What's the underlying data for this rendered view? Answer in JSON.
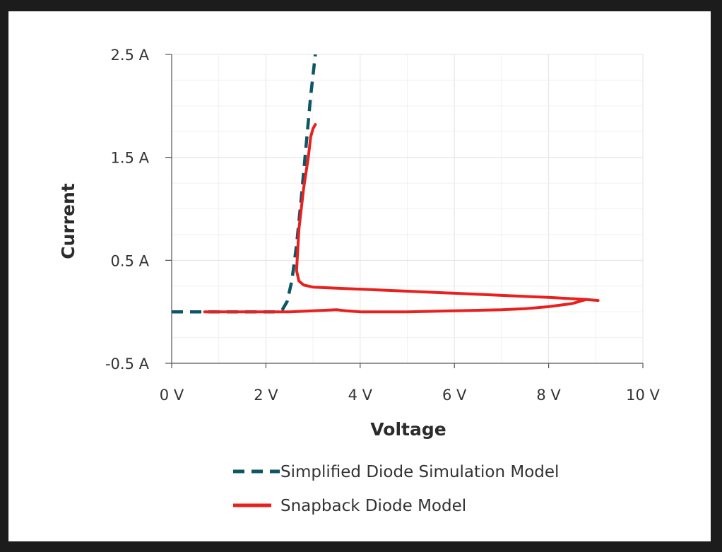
{
  "chart_data": {
    "type": "line",
    "xlabel": "Voltage",
    "ylabel": "Current",
    "xlim": [
      0,
      10
    ],
    "ylim": [
      -0.5,
      2.5
    ],
    "x_ticks": [
      0,
      2,
      4,
      6,
      8,
      10
    ],
    "x_tick_labels": [
      "0 V",
      "2 V",
      "4 V",
      "6 V",
      "8 V",
      "10 V"
    ],
    "y_ticks": [
      -0.5,
      0.5,
      1.5,
      2.5
    ],
    "y_tick_labels": [
      "-0.5 A",
      "0.5 A",
      "1.5 A",
      "2.5 A"
    ],
    "grid": true,
    "legend_position": "bottom",
    "series": [
      {
        "name": "Simplified Diode Simulation Model",
        "color": "#0e5566",
        "style": "dashed",
        "x": [
          0,
          0.5,
          1.0,
          1.5,
          2.0,
          2.2,
          2.35,
          2.45,
          2.55,
          2.65,
          2.75,
          2.85,
          2.95,
          3.05
        ],
        "y": [
          0,
          0,
          0,
          0,
          0,
          0,
          0.02,
          0.1,
          0.3,
          0.65,
          1.1,
          1.6,
          2.1,
          2.5
        ]
      },
      {
        "name": "Snapback Diode Model",
        "color": "#e8201e",
        "style": "solid",
        "x": [
          0.7,
          1.5,
          2.0,
          2.5,
          3.0,
          3.5,
          3.7,
          4.0,
          4.5,
          5.0,
          6.0,
          7.0,
          7.5,
          8.0,
          8.5,
          8.8,
          9.05,
          8.8,
          8.0,
          7.0,
          6.0,
          5.0,
          4.0,
          3.5,
          3.0,
          2.8,
          2.7,
          2.65,
          2.7,
          2.8,
          2.9,
          2.95,
          3.0,
          3.05
        ],
        "y": [
          0,
          0,
          0,
          0,
          0.01,
          0.02,
          0.01,
          0,
          0,
          0,
          0.01,
          0.02,
          0.03,
          0.05,
          0.08,
          0.12,
          0.11,
          0.12,
          0.14,
          0.16,
          0.18,
          0.2,
          0.22,
          0.23,
          0.24,
          0.26,
          0.3,
          0.4,
          0.8,
          1.2,
          1.5,
          1.7,
          1.78,
          1.82
        ]
      }
    ]
  }
}
